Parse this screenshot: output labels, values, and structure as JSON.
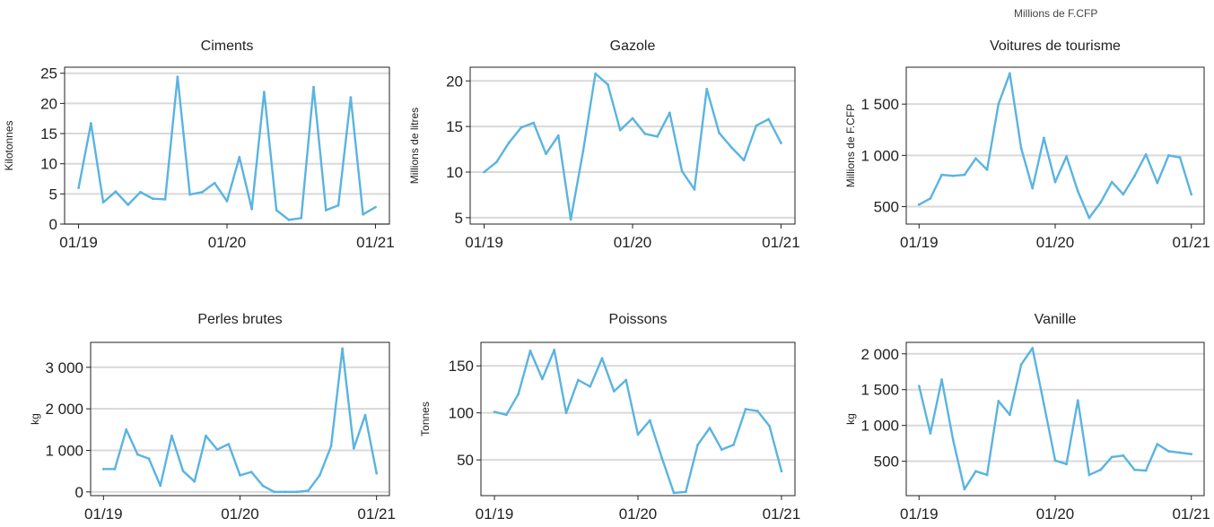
{
  "header_note": "Millions de F.CFP",
  "colors": {
    "line": "#5ab4e0",
    "grid": "#d9d9d9",
    "axis": "#222222"
  },
  "x_tick_labels": [
    "01/19",
    "01/20",
    "01/21"
  ],
  "chart_data": [
    {
      "type": "line",
      "title": "Ciments",
      "ylabel": "Kilotonnes",
      "ylim": [
        0,
        26
      ],
      "yticks": [
        0,
        5,
        10,
        15,
        20,
        25
      ],
      "ytick_labels": [
        "0",
        "5",
        "10",
        "15",
        "20",
        "25"
      ],
      "xlim": [
        0,
        24
      ],
      "x": [
        0,
        1,
        2,
        3,
        4,
        5,
        6,
        7,
        8,
        9,
        10,
        11,
        12,
        13,
        14,
        15,
        16,
        17,
        18,
        19,
        20,
        21,
        22,
        23,
        24
      ],
      "values": [
        6,
        16.7,
        3.6,
        5.4,
        3.2,
        5.3,
        4.2,
        4.1,
        24.4,
        4.9,
        5.3,
        6.8,
        3.8,
        11.1,
        2.5,
        21.9,
        2.3,
        0.7,
        1.0,
        22.7,
        2.3,
        3.1,
        21.0,
        1.6,
        2.8
      ]
    },
    {
      "type": "line",
      "title": "Gazole",
      "ylabel": "Millions de litres",
      "ylim": [
        4.3,
        21.5
      ],
      "yticks": [
        5,
        10,
        15,
        20
      ],
      "ytick_labels": [
        "5",
        "10",
        "15",
        "20"
      ],
      "xlim": [
        0,
        24
      ],
      "x": [
        0,
        1,
        2,
        3,
        4,
        5,
        6,
        7,
        8,
        9,
        10,
        11,
        12,
        13,
        14,
        15,
        16,
        17,
        18,
        19,
        20,
        21,
        22,
        23,
        24
      ],
      "values": [
        10,
        11.1,
        13.2,
        14.9,
        15.4,
        12.0,
        14.0,
        4.8,
        12.3,
        20.8,
        19.6,
        14.6,
        15.9,
        14.2,
        13.9,
        16.5,
        10.1,
        8.1,
        19.1,
        14.3,
        12.7,
        11.3,
        15.1,
        15.8,
        13.2
      ]
    },
    {
      "type": "line",
      "title": "Voitures de tourisme",
      "ylabel": "Millions de F.CFP",
      "ylim": [
        330,
        1860
      ],
      "yticks": [
        500,
        1000,
        1500
      ],
      "ytick_labels": [
        "500",
        "1 000",
        "1 500"
      ],
      "xlim": [
        0,
        24
      ],
      "x": [
        0,
        1,
        2,
        3,
        4,
        5,
        6,
        7,
        8,
        9,
        10,
        11,
        12,
        13,
        14,
        15,
        16,
        17,
        18,
        19,
        20,
        21,
        22,
        23,
        24
      ],
      "values": [
        520,
        580,
        810,
        800,
        810,
        970,
        860,
        1500,
        1800,
        1070,
        680,
        1170,
        740,
        990,
        650,
        390,
        540,
        740,
        620,
        800,
        1010,
        730,
        1000,
        980,
        620
      ]
    },
    {
      "type": "line",
      "title": "Perles brutes",
      "ylabel": "kg",
      "ylim": [
        -90,
        3600
      ],
      "yticks": [
        0,
        1000,
        2000,
        3000
      ],
      "ytick_labels": [
        "0",
        "1 000",
        "2 000",
        "3 000"
      ],
      "xlim": [
        0,
        24
      ],
      "x": [
        0,
        1,
        2,
        3,
        4,
        5,
        6,
        7,
        8,
        9,
        10,
        11,
        12,
        13,
        14,
        15,
        16,
        17,
        18,
        19,
        20,
        21,
        22,
        23,
        24
      ],
      "values": [
        550,
        550,
        1500,
        900,
        800,
        150,
        1350,
        500,
        250,
        1350,
        1020,
        1150,
        400,
        480,
        150,
        0,
        0,
        0,
        30,
        400,
        1100,
        3450,
        1050,
        1850,
        450
      ]
    },
    {
      "type": "line",
      "title": "Poissons",
      "ylabel": "Tonnes",
      "ylim": [
        12,
        175
      ],
      "yticks": [
        50,
        100,
        150
      ],
      "ytick_labels": [
        "50",
        "100",
        "150"
      ],
      "xlim": [
        0,
        24
      ],
      "x": [
        0,
        1,
        2,
        3,
        4,
        5,
        6,
        7,
        8,
        9,
        10,
        11,
        12,
        13,
        14,
        15,
        16,
        17,
        18,
        19,
        20,
        21,
        22,
        23,
        24
      ],
      "values": [
        101,
        98,
        120,
        166,
        136,
        167,
        100,
        135,
        128,
        158,
        123,
        135,
        77,
        92,
        52,
        15,
        16,
        66,
        84,
        61,
        66,
        104,
        102,
        86,
        38
      ]
    },
    {
      "type": "line",
      "title": "Vanille",
      "ylabel": "kg",
      "ylim": [
        20,
        2160
      ],
      "yticks": [
        500,
        1000,
        1500,
        2000
      ],
      "ytick_labels": [
        "500",
        "1 000",
        "1 500",
        "2 000"
      ],
      "xlim": [
        0,
        24
      ],
      "x": [
        0,
        1,
        2,
        3,
        4,
        5,
        6,
        7,
        8,
        9,
        10,
        11,
        12,
        13,
        14,
        15,
        16,
        17,
        18,
        19,
        20,
        21,
        22,
        23,
        24
      ],
      "values": [
        1550,
        890,
        1640,
        800,
        110,
        360,
        310,
        1340,
        1150,
        1850,
        2080,
        1300,
        510,
        460,
        1350,
        310,
        380,
        560,
        580,
        380,
        370,
        740,
        640,
        620,
        600
      ]
    }
  ]
}
